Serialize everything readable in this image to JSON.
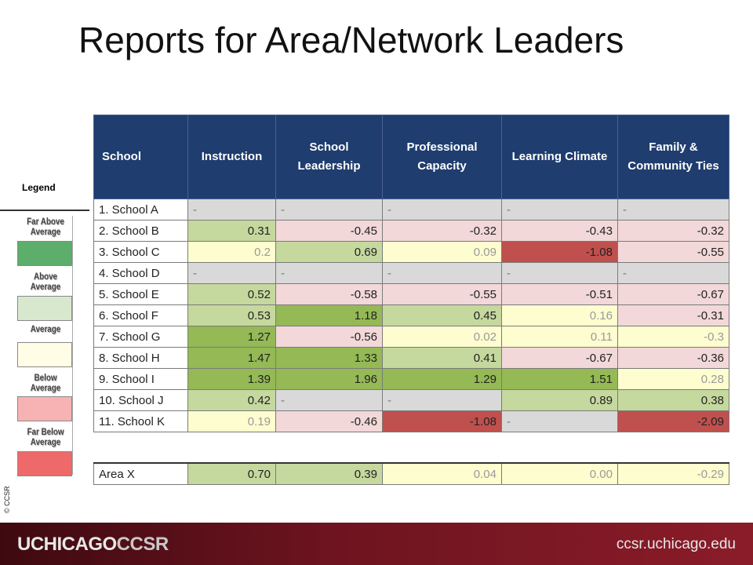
{
  "title": "Reports for Area/Network Leaders",
  "legend": {
    "title": "Legend",
    "items": [
      {
        "label": "Far Above Average",
        "color": "#5cae6a"
      },
      {
        "label": "Above Average",
        "color": "#d8e8cf"
      },
      {
        "label": "Average",
        "color": "#fffde6"
      },
      {
        "label": "Below Average",
        "color": "#f7b3b3"
      },
      {
        "label": "Far Below Average",
        "color": "#ee6a6a"
      }
    ]
  },
  "copyright": "© CCSR",
  "table": {
    "headers": [
      "School",
      "Instruction",
      "School Leadership",
      "Professional Capacity",
      "Learning Climate",
      "Family & Community Ties"
    ],
    "rows": [
      {
        "school": "1. School A",
        "cells": [
          {
            "v": "-",
            "c": "na"
          },
          {
            "v": "-",
            "c": "na"
          },
          {
            "v": "-",
            "c": "na"
          },
          {
            "v": "-",
            "c": "na"
          },
          {
            "v": "-",
            "c": "na"
          }
        ]
      },
      {
        "school": "2. School B",
        "cells": [
          {
            "v": "0.31",
            "c": "a"
          },
          {
            "v": "-0.45",
            "c": "b"
          },
          {
            "v": "-0.32",
            "c": "b"
          },
          {
            "v": "-0.43",
            "c": "b"
          },
          {
            "v": "-0.32",
            "c": "b"
          }
        ]
      },
      {
        "school": "3. School C",
        "cells": [
          {
            "v": "0.2",
            "c": "av"
          },
          {
            "v": "0.69",
            "c": "a"
          },
          {
            "v": "0.09",
            "c": "av"
          },
          {
            "v": "-1.08",
            "c": "fb"
          },
          {
            "v": "-0.55",
            "c": "b"
          }
        ]
      },
      {
        "school": "4. School D",
        "cells": [
          {
            "v": "-",
            "c": "na"
          },
          {
            "v": "-",
            "c": "na"
          },
          {
            "v": "-",
            "c": "na"
          },
          {
            "v": "-",
            "c": "na"
          },
          {
            "v": "-",
            "c": "na"
          }
        ]
      },
      {
        "school": "5. School E",
        "cells": [
          {
            "v": "0.52",
            "c": "a"
          },
          {
            "v": "-0.58",
            "c": "b"
          },
          {
            "v": "-0.55",
            "c": "b"
          },
          {
            "v": "-0.51",
            "c": "b"
          },
          {
            "v": "-0.67",
            "c": "b"
          }
        ]
      },
      {
        "school": "6. School F",
        "cells": [
          {
            "v": "0.53",
            "c": "a"
          },
          {
            "v": "1.18",
            "c": "fa"
          },
          {
            "v": "0.45",
            "c": "a"
          },
          {
            "v": "0.16",
            "c": "av"
          },
          {
            "v": "-0.31",
            "c": "b"
          }
        ]
      },
      {
        "school": "7. School G",
        "cells": [
          {
            "v": "1.27",
            "c": "fa"
          },
          {
            "v": "-0.56",
            "c": "b"
          },
          {
            "v": "0.02",
            "c": "av"
          },
          {
            "v": "0.11",
            "c": "av"
          },
          {
            "v": "-0.3",
            "c": "av"
          }
        ]
      },
      {
        "school": "8. School H",
        "cells": [
          {
            "v": "1.47",
            "c": "fa"
          },
          {
            "v": "1.33",
            "c": "fa"
          },
          {
            "v": "0.41",
            "c": "a"
          },
          {
            "v": "-0.67",
            "c": "b"
          },
          {
            "v": "-0.36",
            "c": "b"
          }
        ]
      },
      {
        "school": "9. School I",
        "cells": [
          {
            "v": "1.39",
            "c": "fa"
          },
          {
            "v": "1.96",
            "c": "fa"
          },
          {
            "v": "1.29",
            "c": "fa"
          },
          {
            "v": "1.51",
            "c": "fa"
          },
          {
            "v": "0.28",
            "c": "av"
          }
        ]
      },
      {
        "school": "10. School J",
        "cells": [
          {
            "v": "0.42",
            "c": "a"
          },
          {
            "v": "-",
            "c": "na"
          },
          {
            "v": "-",
            "c": "na"
          },
          {
            "v": "0.89",
            "c": "a"
          },
          {
            "v": "0.38",
            "c": "a"
          }
        ]
      },
      {
        "school": "11. School K",
        "cells": [
          {
            "v": "0.19",
            "c": "av"
          },
          {
            "v": "-0.46",
            "c": "b"
          },
          {
            "v": "-1.08",
            "c": "fb"
          },
          {
            "v": "-",
            "c": "na"
          },
          {
            "v": "-2.09",
            "c": "fb"
          }
        ]
      }
    ],
    "summary": {
      "school": "Area X",
      "cells": [
        {
          "v": "0.70",
          "c": "a"
        },
        {
          "v": "0.39",
          "c": "a"
        },
        {
          "v": "0.04",
          "c": "av"
        },
        {
          "v": "0.00",
          "c": "av"
        },
        {
          "v": "-0.29",
          "c": "av"
        }
      ]
    }
  },
  "footer": {
    "logo_main": "UCHICAGO",
    "logo_accent": "CCSR",
    "url": "ccsr.uchicago.edu"
  }
}
